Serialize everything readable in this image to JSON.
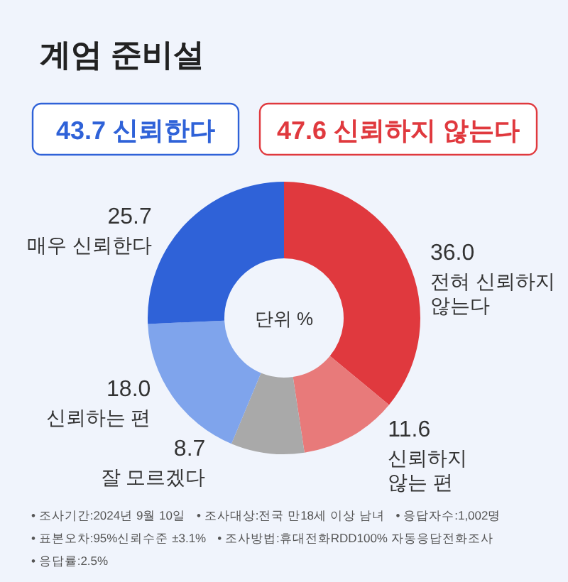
{
  "chart_data": {
    "type": "donut",
    "title": "계엄 준비설",
    "categories": [
      "전혀 신뢰하지 않는다",
      "신뢰하지 않는 편",
      "잘 모르겠다",
      "신뢰하는 편",
      "매우 신뢰한다"
    ],
    "values": [
      36.0,
      11.6,
      8.7,
      18.0,
      25.7
    ],
    "value_labels": [
      "36.0",
      "11.6",
      "8.7",
      "18.0",
      "25.7"
    ],
    "colors": [
      "#e0393e",
      "#e87a7a",
      "#a9a9a9",
      "#7fa4ec",
      "#2f62d8"
    ],
    "subtitle": "단위 %",
    "annotations": [
      "43.7 신뢰한다",
      "47.6 신뢰하지 않는다",
      "• 조사기간:2024년 9월 10일",
      "• 조사대상:전국 만18세 이상 남녀",
      "• 응답자수:1,002명",
      "• 표본오차:95%신뢰수준 ±3.1%",
      "• 조사방법:휴대전화RDD100% 자동응답전화조사",
      "• 응답률:2.5%"
    ]
  }
}
